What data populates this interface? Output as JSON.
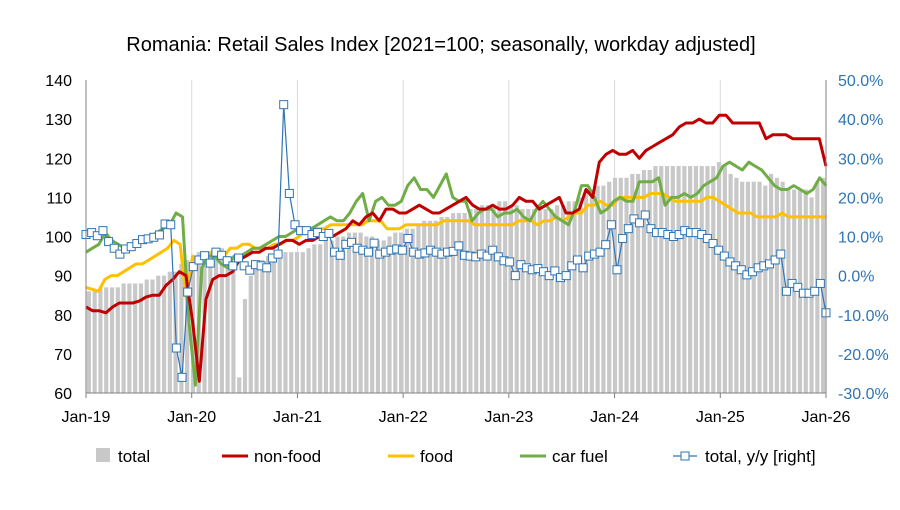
{
  "chart_data": {
    "type": "bar",
    "title": "Romania: Retail Sales Index [2021=100; seasonally, workday adjusted]",
    "x_tick_labels": [
      "Jan-19",
      "Jan-20",
      "Jan-21",
      "Jan-22",
      "Jan-23",
      "Jan-24",
      "Jan-25",
      "Jan-26"
    ],
    "y_left": {
      "range": [
        60,
        140
      ],
      "ticks": [
        "60",
        "70",
        "80",
        "90",
        "100",
        "110",
        "120",
        "130",
        "140"
      ]
    },
    "y_right": {
      "range": [
        -30,
        50
      ],
      "ticks": [
        "-30.0%",
        "-20.0%",
        "-10.0%",
        "0.0%",
        "10.0%",
        "20.0%",
        "30.0%",
        "40.0%",
        "50.0%"
      ]
    },
    "x_start": "Jan-19",
    "x_end": "Jan-26",
    "grid": "vertical-yearly",
    "legend_position": "bottom",
    "colors": {
      "total": "#c8c8c8",
      "non_food": "#c00000",
      "food": "#ffc000",
      "car_fuel": "#70ad47",
      "yoy": "#2e75b6"
    },
    "series": [
      {
        "key": "total",
        "name": "total",
        "kind": "bar",
        "axis": "left",
        "values": [
          86,
          86,
          87,
          87,
          87,
          87,
          88,
          88,
          88,
          88,
          89,
          89,
          90,
          90,
          91,
          91,
          93,
          94,
          95,
          96,
          95,
          96,
          97,
          97,
          95,
          92,
          64,
          84,
          90,
          92,
          94,
          95,
          95,
          96,
          96,
          96,
          96,
          96,
          97,
          98,
          98,
          99,
          99,
          100,
          100,
          101,
          101,
          101,
          100,
          100,
          99,
          99,
          100,
          101,
          101,
          102,
          102,
          103,
          104,
          104,
          104,
          105,
          105,
          106,
          106,
          106,
          107,
          107,
          108,
          108,
          108,
          109,
          109,
          108,
          108,
          107,
          107,
          107,
          108,
          107,
          107,
          108,
          108,
          109,
          109,
          110,
          111,
          112,
          113,
          113,
          114,
          115,
          115,
          115,
          116,
          116,
          117,
          117,
          118,
          118,
          118,
          118,
          118,
          118,
          118,
          118,
          118,
          118,
          118,
          119,
          118,
          116,
          115,
          114,
          114,
          114,
          114,
          113,
          116,
          115,
          114,
          112,
          112,
          112,
          112,
          110,
          114,
          115
        ]
      },
      {
        "key": "non_food",
        "name": "non-food",
        "kind": "line",
        "axis": "left",
        "values": [
          82,
          81,
          81,
          80.5,
          82,
          83,
          83,
          83,
          83.5,
          84.5,
          85,
          85,
          87.5,
          89,
          91,
          90,
          78,
          63,
          84,
          89,
          90,
          90,
          91,
          94,
          95,
          96,
          96,
          97,
          97,
          98,
          99,
          99,
          98,
          99,
          99,
          100,
          100,
          100,
          101,
          102,
          104,
          103,
          105,
          106,
          104,
          107,
          107,
          106,
          106,
          107,
          108,
          107,
          106,
          106,
          107,
          108,
          109,
          110,
          108,
          107,
          107,
          108,
          107,
          107,
          108,
          110,
          109,
          109,
          107,
          108,
          109,
          110,
          106,
          106,
          107,
          112,
          110,
          119,
          121,
          122,
          121,
          121,
          122,
          120,
          122,
          123,
          124,
          125,
          126,
          128,
          129,
          129,
          130,
          129,
          129,
          131,
          131,
          129,
          129,
          129,
          129,
          129,
          125,
          126,
          126,
          126,
          125,
          125,
          125,
          125,
          125,
          118
        ]
      },
      {
        "key": "food",
        "name": "food",
        "kind": "line",
        "axis": "left",
        "values": [
          87,
          86.5,
          86,
          89,
          90,
          90,
          91,
          92,
          93,
          93,
          94,
          95,
          96,
          97,
          99,
          98,
          84,
          95,
          94,
          95,
          96,
          96,
          95,
          97,
          97,
          98,
          98,
          97,
          97,
          97,
          98,
          98,
          99,
          99,
          100,
          102,
          102,
          102,
          102,
          103,
          103,
          103,
          103,
          103,
          103,
          104,
          104,
          104,
          102,
          102,
          102,
          103,
          103,
          103,
          103,
          103,
          103,
          104,
          104,
          104,
          104,
          104,
          103,
          103,
          103,
          103,
          103,
          103,
          103,
          104,
          104,
          104,
          103,
          104,
          104,
          105,
          104,
          105,
          106,
          106,
          108,
          108,
          109,
          108,
          108,
          110,
          110,
          110,
          110,
          110,
          111,
          111,
          111,
          110,
          109,
          109,
          109,
          109,
          109,
          110,
          110,
          109,
          108,
          107,
          106,
          106,
          106,
          105,
          105,
          105,
          105,
          106,
          105,
          105,
          105,
          105,
          105,
          105,
          105
        ]
      },
      {
        "key": "car_fuel",
        "name": "car fuel",
        "kind": "line",
        "axis": "left",
        "values": [
          96,
          97,
          98,
          101,
          99,
          98,
          97,
          98,
          98,
          100,
          100,
          101,
          102,
          103,
          106,
          105,
          78,
          62,
          92,
          95,
          95,
          93,
          92,
          95,
          95,
          96,
          97,
          97,
          98,
          99,
          100,
          100,
          101,
          102,
          101,
          102,
          103,
          104,
          105,
          104,
          104,
          106,
          109,
          111,
          104,
          109,
          110,
          108,
          108,
          109,
          113,
          115,
          112,
          112,
          110,
          113,
          116,
          110,
          109,
          109,
          104,
          106,
          107,
          107,
          105,
          106,
          106,
          107,
          105,
          104,
          107,
          109,
          107,
          105,
          104,
          103,
          107,
          113,
          113,
          110,
          106,
          107,
          109,
          110,
          109,
          109,
          114,
          114,
          114,
          115,
          108,
          110,
          110,
          111,
          110,
          111,
          113,
          114,
          115,
          118,
          119,
          118,
          117,
          119,
          118,
          117,
          115,
          113,
          112,
          112,
          113,
          112,
          111,
          112,
          115,
          113
        ]
      },
      {
        "key": "yoy",
        "name": "total, y/y [right]",
        "kind": "line-markers",
        "axis": "right",
        "values": [
          10.5,
          11,
          10.2,
          11.5,
          8.7,
          7,
          5.5,
          6.8,
          7.4,
          8.2,
          9.2,
          9.4,
          9.8,
          10.4,
          13.2,
          13,
          -18.5,
          -26,
          -4.2,
          2.3,
          4,
          5.1,
          3.2,
          6,
          5.2,
          3.8,
          2.5,
          4.5,
          2.5,
          1.4,
          2.8,
          2.5,
          2,
          4.5,
          5.5,
          43.7,
          21,
          13,
          11.5,
          11.5,
          10.5,
          11,
          10,
          10.8,
          6,
          5.2,
          8,
          8.5,
          7,
          6.5,
          6,
          8.3,
          5.5,
          6,
          6.5,
          6.8,
          6.5,
          9.5,
          6,
          5.5,
          5.8,
          6.5,
          6,
          5.5,
          6,
          6.2,
          7.6,
          5.2,
          5,
          4.8,
          5.5,
          5,
          6.5,
          4.8,
          3.8,
          3.5,
          0,
          2.8,
          2,
          1.5,
          1.8,
          1,
          0,
          1.2,
          -0.5,
          0,
          2.5,
          4,
          2,
          5,
          5.5,
          6,
          7.9,
          13,
          1.5,
          9.5,
          12,
          14.5,
          13.5,
          15.5,
          12,
          11,
          11,
          10.5,
          10,
          10.5,
          11.5,
          11,
          11,
          10.5,
          9.5,
          8.2,
          6.5,
          5,
          3.5,
          2.5,
          1.5,
          0.2,
          1,
          2,
          2.5,
          3,
          4,
          5.5,
          -4,
          -2,
          -3,
          -4.5,
          -4.5,
          -4,
          -2,
          -9.5
        ]
      }
    ]
  }
}
